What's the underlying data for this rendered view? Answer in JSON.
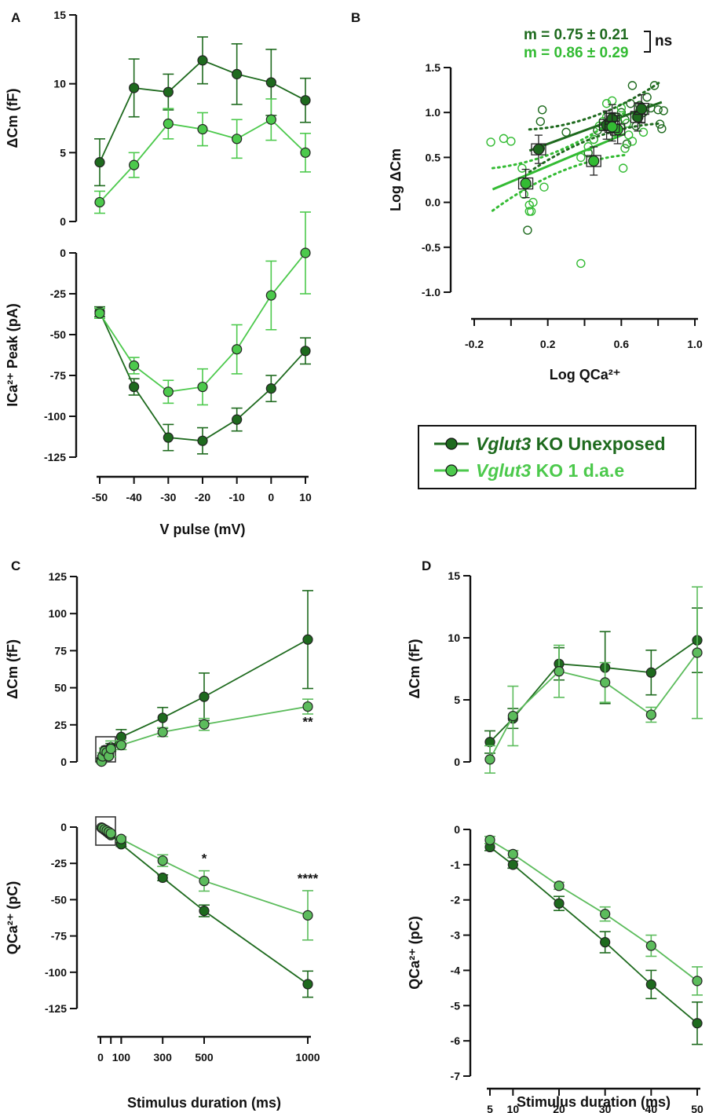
{
  "colors": {
    "dark": "#1e6a1e",
    "light": "#4cc94c",
    "light2": "#5cbc5c",
    "axis": "#111111"
  },
  "legend": {
    "series": [
      {
        "gene": "Vglut3",
        "rest": " KO Unexposed",
        "color": "#1e6a1e"
      },
      {
        "gene": "Vglut3",
        "rest": " KO 1 d.a.e",
        "color": "#4cc94c"
      }
    ]
  },
  "panels": {
    "A": {
      "letter": "A"
    },
    "B": {
      "letter": "B"
    },
    "C": {
      "letter": "C"
    },
    "D": {
      "letter": "D"
    }
  },
  "chart_data": [
    {
      "id": "A-top",
      "type": "line",
      "panel": "A",
      "x": [
        -50,
        -40,
        -30,
        -20,
        -10,
        0,
        10
      ],
      "ylabel": "ΔCm (fF)",
      "ylim": [
        0,
        15
      ],
      "y_ticks": [
        0,
        5,
        10,
        15
      ],
      "series": [
        {
          "name": "Vglut3 KO Unexposed",
          "color": "#1e6a1e",
          "values": [
            4.3,
            9.7,
            9.4,
            11.7,
            10.7,
            10.1,
            8.8
          ],
          "errors": [
            1.7,
            2.1,
            1.3,
            1.7,
            2.2,
            2.4,
            1.6
          ]
        },
        {
          "name": "Vglut3 KO 1 d.a.e",
          "color": "#4cc94c",
          "values": [
            1.4,
            4.1,
            7.1,
            6.7,
            6.0,
            7.4,
            5.0
          ],
          "errors": [
            0.8,
            0.9,
            1.1,
            1.2,
            1.4,
            1.5,
            1.4
          ]
        }
      ]
    },
    {
      "id": "A-bottom",
      "type": "line",
      "panel": "A",
      "x": [
        -50,
        -40,
        -30,
        -20,
        -10,
        0,
        10
      ],
      "x_ticks": [
        -50,
        -40,
        -30,
        -20,
        -10,
        0,
        10
      ],
      "xlabel": "V pulse (mV)",
      "ylabel": "ICa²⁺ Peak (pA)",
      "ylim": [
        -125,
        0
      ],
      "y_ticks": [
        0,
        -25,
        -50,
        -75,
        -100,
        -125
      ],
      "series": [
        {
          "name": "Vglut3 KO Unexposed",
          "color": "#1e6a1e",
          "values": [
            -36,
            -82,
            -113,
            -115,
            -102,
            -83,
            -60
          ],
          "errors": [
            3,
            5,
            8,
            8,
            7,
            8,
            8
          ]
        },
        {
          "name": "Vglut3 KO 1 d.a.e",
          "color": "#4cc94c",
          "values": [
            -37,
            -69,
            -85,
            -82,
            -59,
            -26,
            0
          ],
          "errors": [
            3,
            5,
            7,
            11,
            15,
            21,
            25
          ]
        }
      ]
    },
    {
      "id": "B",
      "type": "scatter",
      "panel": "B",
      "xlabel": "Log  QCa²⁺",
      "ylabel": "Log  ΔCm",
      "xlim": [
        -0.2,
        1.0
      ],
      "ylim": [
        -1.0,
        1.5
      ],
      "x_ticks": [
        -0.2,
        0.2,
        0.6,
        1.0
      ],
      "y_ticks": [
        1.5,
        1.0,
        0.5,
        0.0,
        -0.5,
        -1.0
      ],
      "annotations": [
        {
          "text": "m = 0.75 ± 0.21",
          "color": "#1e6a1e"
        },
        {
          "text": "m = 0.86 ± 0.29",
          "color": "#33bb33"
        },
        {
          "text": "ns",
          "color": "#111111"
        }
      ],
      "series": [
        {
          "name": "Vglut3 KO Unexposed",
          "color": "#1e6a1e",
          "slope": 0.75,
          "intercept": 0.5,
          "means": [
            [
              0.15,
              0.59
            ],
            [
              0.52,
              0.86
            ],
            [
              0.55,
              0.93
            ],
            [
              0.69,
              0.95
            ],
            [
              0.71,
              1.04
            ]
          ],
          "points": [
            [
              0.09,
              -0.31
            ],
            [
              0.16,
              0.6
            ],
            [
              0.16,
              0.9
            ],
            [
              0.17,
              1.03
            ],
            [
              0.3,
              0.78
            ],
            [
              0.42,
              0.55
            ],
            [
              0.45,
              0.7
            ],
            [
              0.5,
              0.85
            ],
            [
              0.53,
              0.88
            ],
            [
              0.55,
              0.95
            ],
            [
              0.58,
              0.9
            ],
            [
              0.6,
              1.0
            ],
            [
              0.62,
              0.92
            ],
            [
              0.65,
              1.1
            ],
            [
              0.66,
              1.3
            ],
            [
              0.68,
              0.85
            ],
            [
              0.7,
              1.08
            ],
            [
              0.72,
              1.0
            ],
            [
              0.74,
              1.17
            ],
            [
              0.76,
              1.05
            ],
            [
              0.78,
              1.3
            ],
            [
              0.8,
              1.03
            ],
            [
              0.81,
              0.87
            ],
            [
              0.82,
              0.82
            ],
            [
              0.83,
              1.02
            ],
            [
              0.63,
              0.65
            ],
            [
              0.47,
              0.8
            ]
          ]
        },
        {
          "name": "Vglut3 KO 1 d.a.e",
          "color": "#33bb33",
          "slope": 0.86,
          "intercept": 0.23,
          "means": [
            [
              0.08,
              0.21
            ],
            [
              0.45,
              0.46
            ],
            [
              0.58,
              0.81
            ],
            [
              0.55,
              0.84
            ]
          ],
          "points": [
            [
              -0.11,
              0.67
            ],
            [
              -0.04,
              0.71
            ],
            [
              0.0,
              0.68
            ],
            [
              0.06,
              0.38
            ],
            [
              0.07,
              0.09
            ],
            [
              0.1,
              -0.03
            ],
            [
              0.1,
              -0.1
            ],
            [
              0.11,
              -0.1
            ],
            [
              0.12,
              0.0
            ],
            [
              0.18,
              0.17
            ],
            [
              0.38,
              -0.68
            ],
            [
              0.38,
              0.5
            ],
            [
              0.42,
              0.62
            ],
            [
              0.45,
              0.7
            ],
            [
              0.48,
              0.85
            ],
            [
              0.5,
              0.9
            ],
            [
              0.52,
              0.95
            ],
            [
              0.52,
              1.1
            ],
            [
              0.55,
              1.13
            ],
            [
              0.56,
              0.78
            ],
            [
              0.58,
              0.95
            ],
            [
              0.6,
              1.05
            ],
            [
              0.61,
              0.38
            ],
            [
              0.62,
              0.6
            ],
            [
              0.63,
              0.88
            ],
            [
              0.64,
              0.75
            ],
            [
              0.66,
              0.68
            ],
            [
              0.68,
              0.95
            ],
            [
              0.7,
              1.02
            ],
            [
              0.72,
              0.78
            ]
          ]
        }
      ]
    },
    {
      "id": "C-top",
      "type": "line",
      "panel": "C",
      "x": [
        5,
        10,
        20,
        30,
        40,
        50,
        100,
        300,
        500,
        1000
      ],
      "ylabel": "ΔCm (fF)",
      "ylim": [
        0,
        125
      ],
      "y_ticks": [
        0,
        25,
        50,
        75,
        100,
        125
      ],
      "significance": [
        {
          "x": 1000,
          "text": "**"
        }
      ],
      "series": [
        {
          "name": "Vglut3 KO Unexposed",
          "color": "#1e6a1e",
          "values": [
            1.6,
            3.5,
            7.9,
            7.6,
            7.2,
            9.8,
            16.8,
            29.7,
            43.9,
            82.5
          ],
          "errors": [
            0.9,
            0.8,
            1.3,
            2.9,
            1.8,
            2.6,
            5,
            7,
            16,
            33
          ]
        },
        {
          "name": "Vglut3 KO 1 d.a.e",
          "color": "#5cbc5c",
          "values": [
            0.2,
            3.7,
            7.3,
            6.4,
            3.8,
            8.8,
            11.3,
            20.1,
            25.3,
            37.3
          ],
          "errors": [
            1.1,
            2.4,
            2.1,
            1.6,
            0.6,
            5.3,
            3,
            3,
            4,
            5
          ]
        }
      ]
    },
    {
      "id": "C-bottom",
      "type": "line",
      "panel": "C",
      "x": [
        5,
        10,
        20,
        30,
        40,
        50,
        100,
        300,
        500,
        1000
      ],
      "x_ticks": [
        0,
        100,
        300,
        500,
        1000
      ],
      "xlabel": "Stimulus duration (ms)",
      "ylabel": "QCa²⁺ (pC)",
      "ylim": [
        -125,
        0
      ],
      "y_ticks": [
        0,
        -25,
        -50,
        -75,
        -100,
        -125
      ],
      "significance": [
        {
          "x": 500,
          "text": "*"
        },
        {
          "x": 1000,
          "text": "****"
        }
      ],
      "series": [
        {
          "name": "Vglut3 KO Unexposed",
          "color": "#1e6a1e",
          "values": [
            -0.5,
            -1.0,
            -2.1,
            -3.2,
            -4.4,
            -5.5,
            -11.8,
            -34.9,
            -57.7,
            -108.2
          ],
          "errors": [
            0.1,
            0.1,
            0.2,
            0.3,
            0.4,
            0.6,
            1.5,
            2,
            4,
            9
          ]
        },
        {
          "name": "Vglut3 KO 1 d.a.e",
          "color": "#5cbc5c",
          "values": [
            -0.3,
            -0.7,
            -1.6,
            -2.4,
            -3.3,
            -4.3,
            -8.2,
            -23.1,
            -37.1,
            -60.8
          ],
          "errors": [
            0.1,
            0.1,
            0.1,
            0.2,
            0.3,
            0.4,
            1.5,
            4,
            7,
            17
          ]
        }
      ]
    },
    {
      "id": "D-top",
      "type": "line",
      "panel": "D",
      "x": [
        5,
        10,
        20,
        30,
        40,
        50
      ],
      "ylabel": "ΔCm (fF)",
      "ylim": [
        0,
        15
      ],
      "y_ticks": [
        0,
        5,
        10,
        15
      ],
      "series": [
        {
          "name": "Vglut3 KO Unexposed",
          "color": "#1e6a1e",
          "values": [
            1.6,
            3.5,
            7.9,
            7.6,
            7.2,
            9.8
          ],
          "errors": [
            0.9,
            0.8,
            1.3,
            2.9,
            1.8,
            2.6
          ]
        },
        {
          "name": "Vglut3 KO 1 d.a.e",
          "color": "#5cbc5c",
          "values": [
            0.2,
            3.7,
            7.3,
            6.4,
            3.8,
            8.8
          ],
          "errors": [
            1.1,
            2.4,
            2.1,
            1.6,
            0.6,
            5.3
          ]
        }
      ]
    },
    {
      "id": "D-bottom",
      "type": "line",
      "panel": "D",
      "x": [
        5,
        10,
        20,
        30,
        40,
        50
      ],
      "x_ticks": [
        5,
        10,
        20,
        30,
        40,
        50
      ],
      "xlabel": "Stimulus duration (ms)",
      "ylabel": "QCa²⁺ (pC)",
      "ylim": [
        -7,
        0
      ],
      "y_ticks": [
        0,
        -1,
        -2,
        -3,
        -4,
        -5,
        -6,
        -7
      ],
      "series": [
        {
          "name": "Vglut3 KO Unexposed",
          "color": "#1e6a1e",
          "values": [
            -0.5,
            -1.0,
            -2.1,
            -3.2,
            -4.4,
            -5.5
          ],
          "errors": [
            0.1,
            0.1,
            0.2,
            0.3,
            0.4,
            0.6
          ]
        },
        {
          "name": "Vglut3 KO 1 d.a.e",
          "color": "#5cbc5c",
          "values": [
            -0.3,
            -0.7,
            -1.6,
            -2.4,
            -3.3,
            -4.3
          ],
          "errors": [
            0.1,
            0.1,
            0.1,
            0.2,
            0.3,
            0.4
          ]
        }
      ]
    }
  ]
}
